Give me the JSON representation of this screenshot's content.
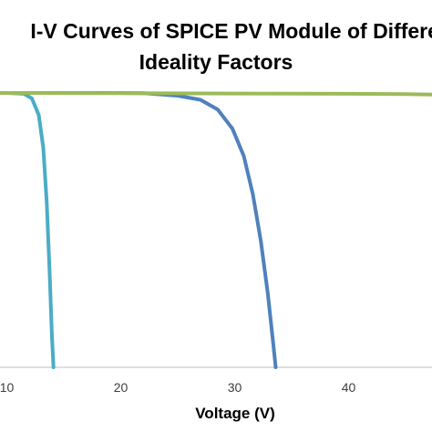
{
  "chart_data": {
    "type": "line",
    "title_lines": [
      "I-V Curves of SPICE PV Module of Different D",
      "Ideality Factors"
    ],
    "xlabel": "Voltage (V)",
    "ylabel": "",
    "xlim": [
      0,
      55
    ],
    "ylim": [
      0,
      1.05
    ],
    "xticks": [
      10,
      20,
      30,
      40
    ],
    "grid": false,
    "legend": "none",
    "series": [
      {
        "color": "#4bacc6",
        "x": [
          0,
          10,
          11.5,
          12.2,
          12.8,
          13.2,
          13.5,
          13.75,
          13.95,
          14.1
        ],
        "y": [
          1.0,
          1.0,
          0.997,
          0.98,
          0.92,
          0.8,
          0.6,
          0.35,
          0.12,
          0.0
        ]
      },
      {
        "color": "#4f81bd",
        "x": [
          0,
          19,
          22,
          25,
          27,
          28.5,
          29.8,
          30.8,
          31.6,
          32.3,
          32.9,
          33.4,
          33.6
        ],
        "y": [
          1.0,
          1.0,
          0.999,
          0.99,
          0.975,
          0.94,
          0.87,
          0.77,
          0.63,
          0.46,
          0.27,
          0.08,
          0.0
        ]
      },
      {
        "color": "#9bbb59",
        "x": [
          0,
          10,
          20,
          30,
          40,
          45,
          49,
          52,
          55
        ],
        "y": [
          1.0,
          1.0,
          0.999,
          0.998,
          0.997,
          0.996,
          0.993,
          0.985,
          0.97
        ]
      }
    ]
  }
}
